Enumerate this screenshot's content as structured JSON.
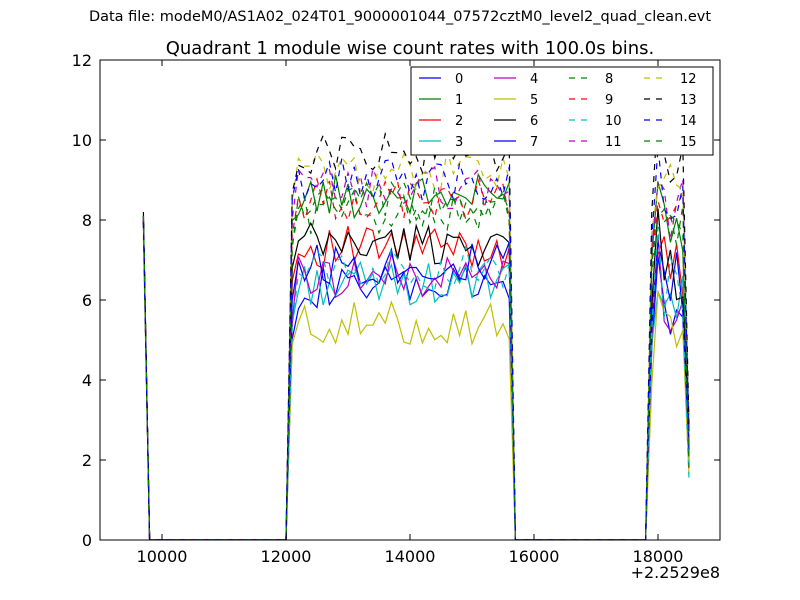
{
  "suptitle": "Data file: modeM0/AS1A02_024T01_9000001044_07572cztM0_level2_quad_clean.evt",
  "chart_data": {
    "type": "line",
    "title": "Quadrant 1 module wise count rates with 100.0s bins.",
    "xlabel": "",
    "ylabel": "",
    "xlim": [
      9000,
      19000
    ],
    "ylim": [
      0,
      12
    ],
    "x_offset_label": "+2.2529e8",
    "xticks": [
      10000,
      12000,
      14000,
      16000,
      18000
    ],
    "xtick_labels": [
      "10000",
      "12000",
      "14000",
      "16000",
      "18000"
    ],
    "yticks": [
      0,
      2,
      4,
      6,
      8,
      10,
      12
    ],
    "ytick_labels": [
      "0",
      "2",
      "4",
      "6",
      "8",
      "10",
      "12"
    ],
    "grid": false,
    "legend": {
      "position": "top-right",
      "columns": 4
    },
    "segments": [
      {
        "start": 9700,
        "end": 9800,
        "step": 100
      },
      {
        "start": 12000,
        "end": 15700,
        "step": 100
      },
      {
        "start": 17800,
        "end": 18500,
        "step": 100
      }
    ],
    "series": [
      {
        "name": "0",
        "color": "#0000ff",
        "dash": "solid",
        "base": 6.3,
        "spike": 8.0
      },
      {
        "name": "1",
        "color": "#008000",
        "dash": "solid",
        "base": 8.6,
        "spike": 8.1
      },
      {
        "name": "2",
        "color": "#ff0000",
        "dash": "solid",
        "base": 7.3,
        "spike": 8.0
      },
      {
        "name": "3",
        "color": "#00bfbf",
        "dash": "solid",
        "base": 6.4,
        "spike": 7.9
      },
      {
        "name": "4",
        "color": "#bf00bf",
        "dash": "solid",
        "base": 6.6,
        "spike": 8.0
      },
      {
        "name": "5",
        "color": "#bfbf00",
        "dash": "solid",
        "base": 5.4,
        "spike": 7.6
      },
      {
        "name": "6",
        "color": "#000000",
        "dash": "solid",
        "base": 7.4,
        "spike": 8.1
      },
      {
        "name": "7",
        "color": "#0000ff",
        "dash": "solid",
        "base": 6.9,
        "spike": 8.0
      },
      {
        "name": "8",
        "color": "#008000",
        "dash": "dashed",
        "base": 8.2,
        "spike": 8.1
      },
      {
        "name": "9",
        "color": "#ff0000",
        "dash": "dashed",
        "base": 8.5,
        "spike": 8.0
      },
      {
        "name": "10",
        "color": "#00bfbf",
        "dash": "dashed",
        "base": 6.8,
        "spike": 7.9
      },
      {
        "name": "11",
        "color": "#bf00bf",
        "dash": "dashed",
        "base": 8.8,
        "spike": 8.0
      },
      {
        "name": "12",
        "color": "#bfbf00",
        "dash": "dashed",
        "base": 9.2,
        "spike": 7.8
      },
      {
        "name": "13",
        "color": "#000000",
        "dash": "dashed",
        "base": 9.7,
        "spike": 8.2
      },
      {
        "name": "14",
        "color": "#0000ff",
        "dash": "dashed",
        "base": 9.0,
        "spike": 8.0
      },
      {
        "name": "15",
        "color": "#008000",
        "dash": "dashed",
        "base": 8.4,
        "spike": 8.1
      }
    ]
  }
}
